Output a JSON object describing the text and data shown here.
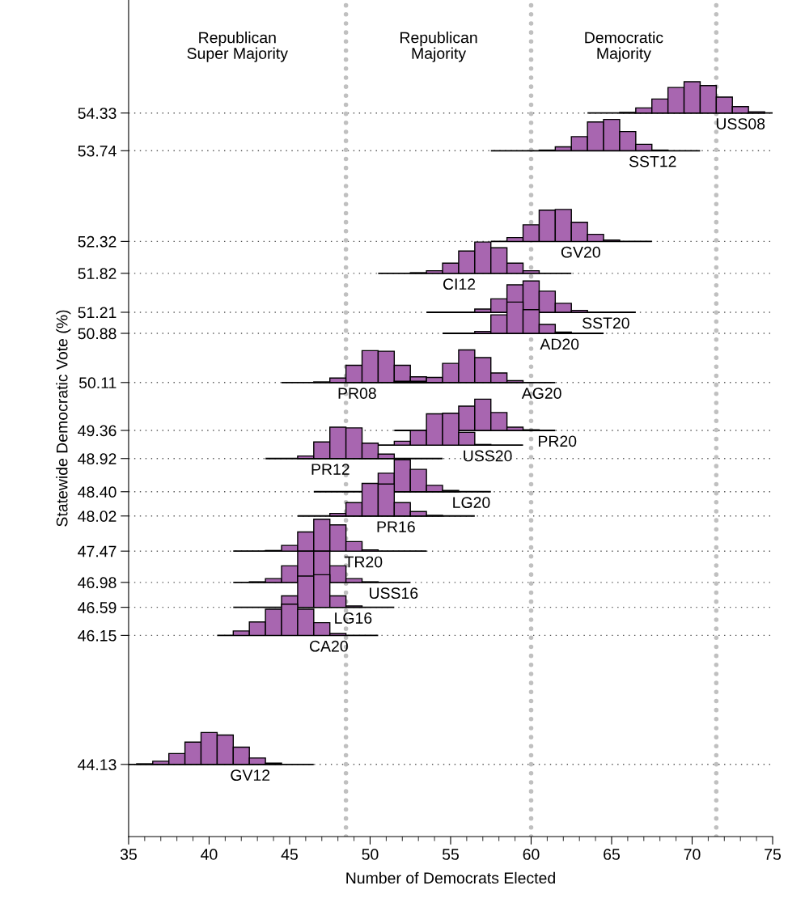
{
  "chart_data": {
    "type": "bar",
    "xlabel": "Number of Democrats Elected",
    "ylabel": "Statewide Democratic Vote (%)",
    "xlim": [
      35,
      75
    ],
    "xticks": [
      35,
      40,
      45,
      50,
      55,
      60,
      65,
      70,
      75
    ],
    "ylim": [
      43.0,
      56.1
    ],
    "yticks": [
      54.33,
      53.74,
      52.32,
      51.82,
      51.21,
      50.88,
      50.11,
      49.36,
      48.92,
      {
        "value": 48.4,
        "label": "48.40"
      },
      48.02,
      47.47,
      46.98,
      46.59,
      46.15,
      44.13
    ],
    "grid": "y",
    "ref_lines": [
      {
        "axis": "x",
        "value": 48.5,
        "color": "#c0c0c0",
        "line_style": "dotted"
      },
      {
        "axis": "x",
        "value": 60,
        "color": "#c0c0c0",
        "line_style": "dotted"
      },
      {
        "axis": "x",
        "value": 71.5,
        "color": "#c0c0c0",
        "line_style": "dotted"
      }
    ],
    "series": [
      {
        "type": "line",
        "color": "#000000",
        "x": [
          63.5,
          75
        ],
        "values": [
          54.33,
          54.33
        ]
      },
      {
        "name": "USS08",
        "color": "#a866b0",
        "x": [
          66,
          67,
          68,
          69,
          70,
          71,
          72,
          73,
          74
        ],
        "values": [
          0.01,
          0.08,
          0.22,
          0.4,
          0.49,
          0.43,
          0.25,
          0.1,
          0.02
        ],
        "base": [
          54.33,
          54.33,
          54.33,
          54.33,
          54.33,
          54.33,
          54.33,
          54.33,
          54.33
        ]
      },
      {
        "type": "line",
        "color": "#000000",
        "x": [
          57.5,
          70.5
        ],
        "values": [
          53.74,
          53.74
        ]
      },
      {
        "name": "SST12",
        "color": "#a866b0",
        "x": [
          61,
          62,
          63,
          64,
          65,
          66,
          67,
          68
        ],
        "values": [
          0.01,
          0.06,
          0.22,
          0.45,
          0.49,
          0.3,
          0.1,
          0.01
        ],
        "base": [
          53.74,
          53.74,
          53.74,
          53.74,
          53.74,
          53.74,
          53.74,
          53.74
        ]
      },
      {
        "type": "line",
        "color": "#000000",
        "x": [
          57.5,
          67.5
        ],
        "values": [
          52.32,
          52.32
        ]
      },
      {
        "name": "GV20",
        "color": "#a866b0",
        "x": [
          59,
          60,
          61,
          62,
          63,
          64,
          65
        ],
        "values": [
          0.06,
          0.26,
          0.49,
          0.5,
          0.3,
          0.11,
          0.02
        ],
        "base": [
          52.32,
          52.32,
          52.32,
          52.32,
          52.32,
          52.32,
          52.32
        ]
      },
      {
        "type": "line",
        "color": "#000000",
        "x": [
          50.5,
          62.5
        ],
        "values": [
          51.82,
          51.82
        ]
      },
      {
        "name": "CI12",
        "color": "#a866b0",
        "x": [
          53,
          54,
          55,
          56,
          57,
          58,
          59,
          60
        ],
        "values": [
          0.01,
          0.04,
          0.16,
          0.35,
          0.49,
          0.4,
          0.16,
          0.04
        ],
        "base": [
          51.82,
          51.82,
          51.82,
          51.82,
          51.82,
          51.82,
          51.82,
          51.82
        ]
      },
      {
        "type": "line",
        "color": "#000000",
        "x": [
          53.5,
          66.5
        ],
        "values": [
          51.21,
          51.21
        ]
      },
      {
        "name": "SST20",
        "color": "#a866b0",
        "x": [
          57,
          58,
          59,
          60,
          61,
          62,
          63
        ],
        "values": [
          0.05,
          0.21,
          0.43,
          0.49,
          0.33,
          0.14,
          0.03
        ],
        "base": [
          51.21,
          51.21,
          51.21,
          51.21,
          51.21,
          51.21,
          51.21
        ]
      },
      {
        "type": "line",
        "color": "#000000",
        "x": [
          54.5,
          64.5
        ],
        "values": [
          50.88,
          50.88
        ]
      },
      {
        "name": "AD20",
        "color": "#a866b0",
        "x": [
          57,
          58,
          59,
          60,
          61,
          62
        ],
        "values": [
          0.03,
          0.29,
          0.49,
          0.37,
          0.14,
          0.02
        ],
        "base": [
          50.88,
          50.88,
          50.88,
          50.88,
          50.88,
          50.88
        ]
      },
      {
        "type": "line",
        "color": "#000000",
        "x": [
          44.5,
          54.5
        ],
        "values": [
          50.11,
          50.11
        ]
      },
      {
        "name": "PR08",
        "color": "#a866b0",
        "x": [
          47,
          48,
          49,
          50,
          51,
          52,
          53
        ],
        "values": [
          0.01,
          0.07,
          0.27,
          0.5,
          0.49,
          0.27,
          0.09
        ],
        "base": [
          50.11,
          50.11,
          50.11,
          50.11,
          50.11,
          50.11,
          50.11
        ]
      },
      {
        "type": "line",
        "color": "#000000",
        "x": [
          51.5,
          61.5
        ],
        "values": [
          50.11,
          50.11
        ]
      },
      {
        "name": "AG20",
        "color": "#a866b0",
        "x": [
          52,
          53,
          54,
          55,
          56,
          57,
          58,
          59
        ],
        "values": [
          0.02,
          0.02,
          0.08,
          0.3,
          0.51,
          0.39,
          0.15,
          0.03
        ],
        "base": [
          50.11,
          50.11,
          50.11,
          50.11,
          50.11,
          50.11,
          50.11,
          50.11
        ]
      },
      {
        "type": "line",
        "color": "#000000",
        "x": [
          51.5,
          61.5
        ],
        "values": [
          49.36,
          49.36
        ]
      },
      {
        "name": "PR20",
        "color": "#a866b0",
        "x": [
          56,
          57,
          58,
          59,
          60
        ],
        "values": [
          0.38,
          0.49,
          0.28,
          0.05,
          0.01
        ],
        "base": [
          49.36,
          49.36,
          49.36,
          49.36,
          49.36
        ]
      },
      {
        "type": "line",
        "color": "#000000",
        "x": [
          48.5,
          59.5
        ],
        "values": [
          49.13,
          49.13
        ]
      },
      {
        "name": "USS20",
        "color": "#a866b0",
        "x": [
          52,
          53,
          54,
          55,
          56,
          57
        ],
        "values": [
          0.06,
          0.23,
          0.49,
          0.5,
          0.2,
          0.01
        ],
        "base": [
          49.13,
          49.13,
          49.13,
          49.13,
          49.13,
          49.13
        ]
      },
      {
        "type": "line",
        "color": "#000000",
        "x": [
          43.5,
          54.5
        ],
        "values": [
          48.92,
          48.92
        ]
      },
      {
        "name": "PR12",
        "color": "#a866b0",
        "x": [
          46,
          47,
          48,
          49,
          50,
          51
        ],
        "values": [
          0.04,
          0.26,
          0.49,
          0.48,
          0.24,
          0.07
        ],
        "base": [
          48.92,
          48.92,
          48.92,
          48.92,
          48.92,
          48.92
        ]
      },
      {
        "type": "line",
        "color": "#000000",
        "x": [
          46.5,
          57.5
        ],
        "values": [
          48.4,
          48.4
        ]
      },
      {
        "name": "LG20",
        "color": "#a866b0",
        "x": [
          51,
          52,
          53,
          54,
          55
        ],
        "values": [
          0.29,
          0.5,
          0.35,
          0.1,
          0.02
        ],
        "base": [
          48.4,
          48.4,
          48.4,
          48.4,
          48.4
        ]
      },
      {
        "type": "line",
        "color": "#000000",
        "x": [
          45.5,
          56.5
        ],
        "values": [
          48.02,
          48.02
        ]
      },
      {
        "name": "PR16",
        "color": "#a866b0",
        "x": [
          48,
          49,
          50,
          51,
          52,
          53,
          54
        ],
        "values": [
          0.04,
          0.21,
          0.51,
          0.5,
          0.21,
          0.07,
          0.01
        ],
        "base": [
          48.02,
          48.02,
          48.02,
          48.02,
          48.02,
          48.02,
          48.02
        ]
      },
      {
        "type": "line",
        "color": "#000000",
        "x": [
          41.5,
          53.5
        ],
        "values": [
          47.47,
          47.47
        ]
      },
      {
        "name": "TR20",
        "color": "#a866b0",
        "x": [
          44,
          45,
          46,
          47,
          48,
          49,
          50
        ],
        "values": [
          0.01,
          0.09,
          0.3,
          0.5,
          0.41,
          0.15,
          0.02
        ],
        "base": [
          47.47,
          47.47,
          47.47,
          47.47,
          47.47,
          47.47,
          47.47
        ]
      },
      {
        "type": "line",
        "color": "#000000",
        "x": [
          41.5,
          52.5
        ],
        "values": [
          46.98,
          46.98
        ]
      },
      {
        "name": "USS16",
        "color": "#a866b0",
        "x": [
          43,
          44,
          45,
          46,
          47,
          48,
          49,
          50
        ],
        "values": [
          0.01,
          0.06,
          0.26,
          0.49,
          0.49,
          0.26,
          0.06,
          0.01
        ],
        "base": [
          46.98,
          46.98,
          46.98,
          46.98,
          46.98,
          46.98,
          46.98,
          46.98
        ]
      },
      {
        "type": "line",
        "color": "#000000",
        "x": [
          41.5,
          51.5
        ],
        "values": [
          46.59,
          46.59
        ]
      },
      {
        "name": "LG16",
        "color": "#a866b0",
        "x": [
          45,
          46,
          47,
          48,
          49
        ],
        "values": [
          0.18,
          0.49,
          0.51,
          0.18,
          0.02
        ],
        "base": [
          46.59,
          46.59,
          46.59,
          46.59,
          46.59
        ]
      },
      {
        "type": "line",
        "color": "#000000",
        "x": [
          40.5,
          50.5
        ],
        "values": [
          46.15,
          46.15
        ]
      },
      {
        "name": "CA20",
        "color": "#a866b0",
        "x": [
          42,
          43,
          44,
          45,
          46,
          47,
          48
        ],
        "values": [
          0.07,
          0.21,
          0.41,
          0.49,
          0.41,
          0.2,
          0.03
        ],
        "base": [
          46.15,
          46.15,
          46.15,
          46.15,
          46.15,
          46.15,
          46.15
        ]
      },
      {
        "type": "line",
        "color": "#000000",
        "x": [
          35,
          46.5
        ],
        "values": [
          44.13,
          44.13
        ]
      },
      {
        "name": "GV12",
        "color": "#a866b0",
        "x": [
          36,
          37,
          38,
          39,
          40,
          41,
          42,
          43,
          44
        ],
        "values": [
          0.01,
          0.05,
          0.17,
          0.35,
          0.5,
          0.46,
          0.27,
          0.1,
          0.02
        ],
        "base": [
          44.13,
          44.13,
          44.13,
          44.13,
          44.13,
          44.13,
          44.13,
          44.13,
          44.13
        ]
      }
    ],
    "annotations": [
      "Republican\nSuper Majority",
      "Republican\nMajority",
      "Democratic\nMajority"
    ]
  }
}
